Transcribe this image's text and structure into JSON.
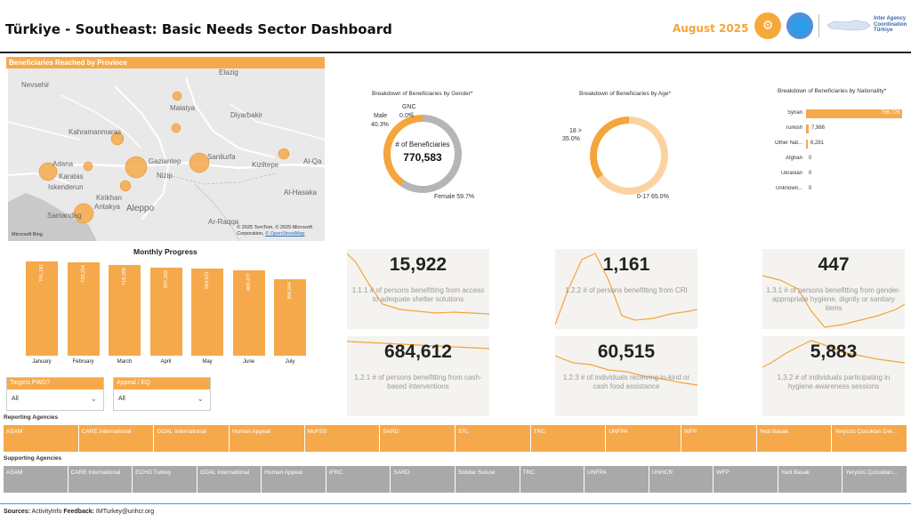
{
  "header": {
    "title": "Türkiye - Southeast: Basic Needs Sector Dashboard",
    "date": "August 2025",
    "logo_text": [
      "Inter Agency",
      "Coordination",
      "Türkiye"
    ]
  },
  "map": {
    "title": "Beneficiaries Reached by Province",
    "cities": [
      "Nevsehir",
      "Elazig",
      "Malatya",
      "Diyarbakir",
      "Kahramanmaras",
      "Adana",
      "Gaziantep",
      "Sanliurfa",
      "Kiziltepe",
      "Al-Qa",
      "Iskenderun",
      "Karatas",
      "Kirikhan",
      "Nizip",
      "Antakya",
      "Aleppo",
      "Samandag",
      "Al-Hasaka",
      "Ar-Raqqa"
    ],
    "credit_line1": "© 2025 TomTom, © 2025 Microsoft",
    "credit_line2": "Corporation,",
    "credit_link": "© OpenStreetMap",
    "brand": "Microsoft Bing"
  },
  "gender_chart": {
    "title": "Breakdown of Beneficiaries by Gender*",
    "center_label": "# of Beneficiaries",
    "center_value": "770,583",
    "labels": {
      "male": "Male",
      "male_pct": "40.3%",
      "gnc": "GNC",
      "gnc_pct": "0.0%",
      "female": "Female 59.7%"
    },
    "colors": {
      "male": "#f4a53c",
      "female": "#b5b5b5"
    }
  },
  "age_chart": {
    "title": "Breakdown of Beneficiaries by Age*",
    "labels": {
      "adult": "18 >",
      "adult_pct": "35.0%",
      "child": "0-17 65.0%"
    },
    "colors": {
      "adult": "#f4a53c",
      "child": "#fbd3a0"
    }
  },
  "nationality_chart": {
    "title": "Breakdown of Beneficiaries by Nationality*",
    "rows": [
      {
        "name": "Syrian",
        "value": "756,726"
      },
      {
        "name": "Turkish",
        "value": "7,966"
      },
      {
        "name": "Other Nat...",
        "value": "6,281"
      },
      {
        "name": "Afghan",
        "value": "0"
      },
      {
        "name": "Ukranian",
        "value": "0"
      },
      {
        "name": "Unknown...",
        "value": "0"
      }
    ]
  },
  "monthly_chart": {
    "title": "Monthly Progress",
    "months": [
      {
        "label": "January",
        "value": "741,181"
      },
      {
        "label": "February",
        "value": "733,254"
      },
      {
        "label": "March",
        "value": "716,206"
      },
      {
        "label": "April",
        "value": "697,333"
      },
      {
        "label": "May",
        "value": "684,671"
      },
      {
        "label": "June",
        "value": "669,477"
      },
      {
        "label": "July",
        "value": "398,844"
      }
    ]
  },
  "kpis": [
    {
      "value": "15,922",
      "desc": "1.1.1 # of persons benefitting from access to adequate shelter solutions"
    },
    {
      "value": "1,161",
      "desc": "1.2.2 # of persons benefitting from CRI"
    },
    {
      "value": "447",
      "desc": "1.3.1 # of persons benefitting from gender-appropriate hygiene, dignity or sanitary items"
    },
    {
      "value": "684,612",
      "desc": "1.2.1 # of persons benefitting from cash-based interventions"
    },
    {
      "value": "60,515",
      "desc": "1.2.3 # of individuals receiving in-kind or cash food assistance"
    },
    {
      "value": "5,883",
      "desc": "1.3.2 # of individuals participating in hygiene awareness sessions"
    }
  ],
  "filters": {
    "targets": {
      "label": "Targets PWD?",
      "value": "All"
    },
    "appeal": {
      "label": "Appeal / EQ",
      "value": "All"
    }
  },
  "reporting": {
    "label": "Reporting Agencies",
    "agencies": [
      "ASAM",
      "CARE International",
      "GOAL International",
      "Human Appeal",
      "MoFSS",
      "SARD",
      "STL",
      "TRC",
      "UNFPA",
      "WFP",
      "Yedi Basak",
      "Yeryüzü Çocukları Der..."
    ]
  },
  "supporting": {
    "label": "Supporting Agencies",
    "agencies": [
      "ASAM",
      "CARE International",
      "ECHO Turkey",
      "GOAL International",
      "Human Appeal",
      "IFRC",
      "SARD",
      "Solidar Suisse",
      "TRC",
      "UNFPA",
      "UNHCR",
      "WFP",
      "Yedi Basak",
      "Yeryüzü Çocukları..."
    ]
  },
  "footer": {
    "sources_label": "Sources:",
    "sources_value": "ActivityInfo",
    "feedback_label": "Feedback:",
    "feedback_value": "IMTurkey@unhcr.org"
  }
}
